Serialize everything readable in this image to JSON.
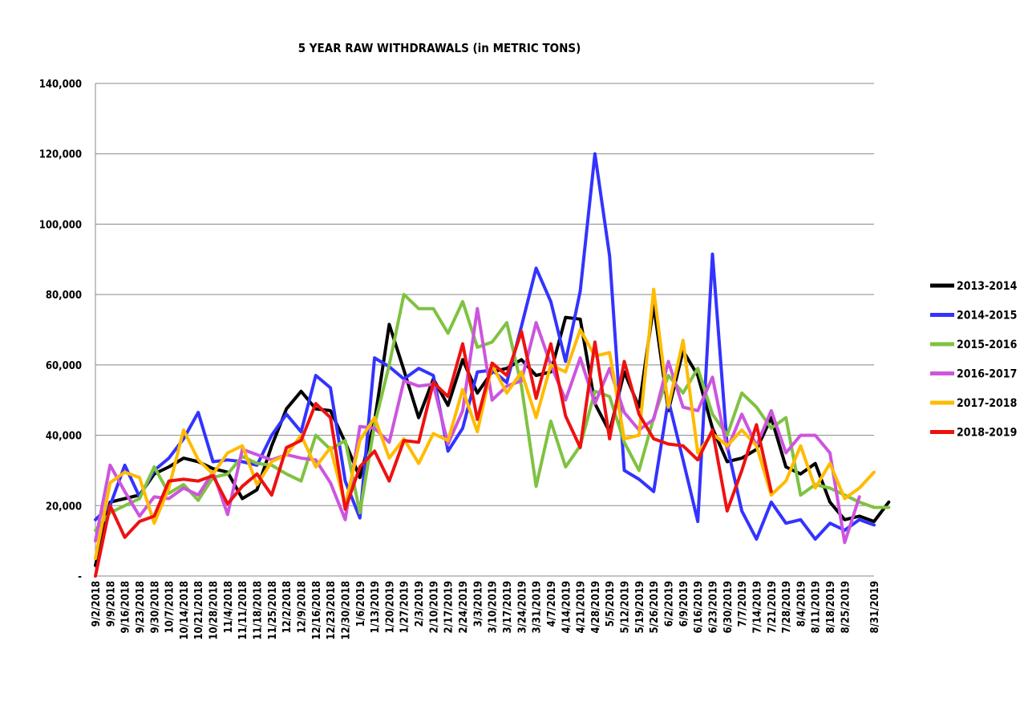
{
  "chart_data": {
    "type": "line",
    "title": "5 YEAR RAW WITHDRAWALS (in METRIC TONS)",
    "xlabel": "",
    "ylabel": "",
    "ylim": [
      0,
      140000
    ],
    "y_ticks": [
      "-",
      "20,000",
      "40,000",
      "60,000",
      "80,000",
      "100,000",
      "120,000",
      "140,000"
    ],
    "grid": true,
    "legend_position": "right",
    "x_labels_shown": [
      "9/2/2018",
      "9/9/2018",
      "9/16/2018",
      "9/23/2018",
      "9/30/2018",
      "10/7/2018",
      "10/14/2018",
      "10/21/2018",
      "10/28/2018",
      "11/4/2018",
      "11/11/2018",
      "11/18/2018",
      "11/25/2018",
      "12/2/2018",
      "12/9/2018",
      "12/16/2018",
      "12/23/2018",
      "12/30/2018",
      "1/6/2019",
      "1/13/2019",
      "1/20/2019",
      "1/27/2019",
      "2/3/2019",
      "2/10/2019",
      "2/17/2019",
      "2/24/2019",
      "3/3/2019",
      "3/10/2019",
      "3/17/2019",
      "3/24/2019",
      "3/31/2019",
      "4/7/2019",
      "4/14/2019",
      "4/21/2019",
      "4/28/2019",
      "5/5/2019",
      "5/12/2019",
      "5/19/2019",
      "5/26/2019",
      "6/2/2019",
      "6/9/2019",
      "6/16/2019",
      "6/23/2019",
      "6/30/2019",
      "7/7/2019",
      "7/14/2019",
      "7/21/2019",
      "7/28/2019",
      "8/4/2019",
      "8/11/2019",
      "8/18/2019",
      "8/25/2019",
      "8/31/2019"
    ],
    "series": [
      {
        "name": "2013-2014",
        "color": "#000000",
        "values": [
          3000,
          21000,
          22000,
          23000,
          29000,
          31000,
          33500,
          32500,
          30500,
          29500,
          22000,
          24500,
          37000,
          47500,
          52500,
          47500,
          47000,
          38000,
          28000,
          44000,
          71500,
          58500,
          45000,
          56000,
          48500,
          61500,
          52000,
          58000,
          59000,
          61500,
          57000,
          58000,
          73500,
          73000,
          49000,
          41000,
          58000,
          48000,
          77000,
          47000,
          64000,
          57000,
          42000,
          32500,
          33500,
          36000,
          45000,
          31000,
          29000,
          32000,
          21000,
          16000,
          17000,
          15500,
          21000
        ]
      },
      {
        "name": "2014-2015",
        "color": "#3333ff",
        "values": [
          16000,
          20000,
          31500,
          22500,
          30000,
          33500,
          39000,
          46500,
          32500,
          33000,
          32500,
          31500,
          40000,
          46000,
          41000,
          57000,
          53500,
          27000,
          16500,
          62000,
          59500,
          56000,
          59000,
          57000,
          35500,
          42000,
          58000,
          58500,
          55000,
          71000,
          87500,
          78000,
          61000,
          81000,
          120000,
          91000,
          30000,
          27500,
          24000,
          50000,
          33000,
          15500,
          91500,
          37000,
          18500,
          10500,
          21000,
          15000,
          16000,
          10500,
          15000,
          13000,
          16000,
          14500
        ]
      },
      {
        "name": "2015-2016",
        "color": "#7fc241",
        "values": [
          13000,
          18000,
          20000,
          22000,
          31000,
          23500,
          26000,
          21500,
          28000,
          29000,
          34000,
          32000,
          31500,
          29000,
          27000,
          40000,
          36000,
          38500,
          18000,
          43000,
          60000,
          80000,
          76000,
          76000,
          69000,
          78000,
          65000,
          66500,
          72000,
          54000,
          25500,
          44000,
          31000,
          37000,
          52500,
          51000,
          38000,
          30000,
          45000,
          57000,
          52000,
          59000,
          46000,
          40000,
          52000,
          48000,
          42000,
          45000,
          23000,
          26000,
          25000,
          23000,
          21000,
          19500,
          19500
        ]
      },
      {
        "name": "2016-2017",
        "color": "#cc55dd",
        "values": [
          10000,
          31500,
          24000,
          17000,
          22500,
          22000,
          25000,
          23000,
          29500,
          17500,
          36000,
          34500,
          33000,
          34500,
          33500,
          33000,
          26500,
          16000,
          42500,
          42000,
          38000,
          55500,
          54000,
          54500,
          37500,
          47000,
          76000,
          50000,
          54000,
          55500,
          72000,
          60000,
          50000,
          62000,
          49000,
          59000,
          46500,
          41500,
          44500,
          61000,
          48000,
          47000,
          56500,
          36000,
          46000,
          37000,
          47000,
          35000,
          40000,
          40000,
          35000,
          9500,
          22500
        ]
      },
      {
        "name": "2017-2018",
        "color": "#ffbb00",
        "values": [
          5000,
          26500,
          29500,
          28000,
          15000,
          25000,
          41500,
          33000,
          29000,
          35000,
          37000,
          26000,
          32500,
          34500,
          40000,
          31000,
          36500,
          20000,
          38500,
          45000,
          33500,
          39000,
          32000,
          40500,
          38500,
          53000,
          41000,
          60000,
          52000,
          58000,
          45000,
          60000,
          58000,
          70000,
          62500,
          63500,
          39000,
          40000,
          81500,
          48000,
          67000,
          35000,
          40500,
          37000,
          41500,
          37000,
          23000,
          27000,
          37000,
          25000,
          32000,
          22000,
          25000,
          29500
        ]
      },
      {
        "name": "2018-2019",
        "color": "#ee1111",
        "values": [
          0,
          20000,
          11000,
          15500,
          17000,
          27000,
          27500,
          27000,
          28500,
          20500,
          25500,
          29000,
          23000,
          36500,
          38500,
          49000,
          45000,
          19000,
          31000,
          35500,
          27000,
          38500,
          38000,
          55000,
          51000,
          66000,
          44500,
          60500,
          57000,
          69500,
          50500,
          66000,
          45500,
          36500,
          66500,
          39000,
          61000,
          46000,
          39000,
          37500,
          37000,
          33000,
          41500,
          18500,
          30000,
          43000,
          24000
        ]
      }
    ]
  }
}
